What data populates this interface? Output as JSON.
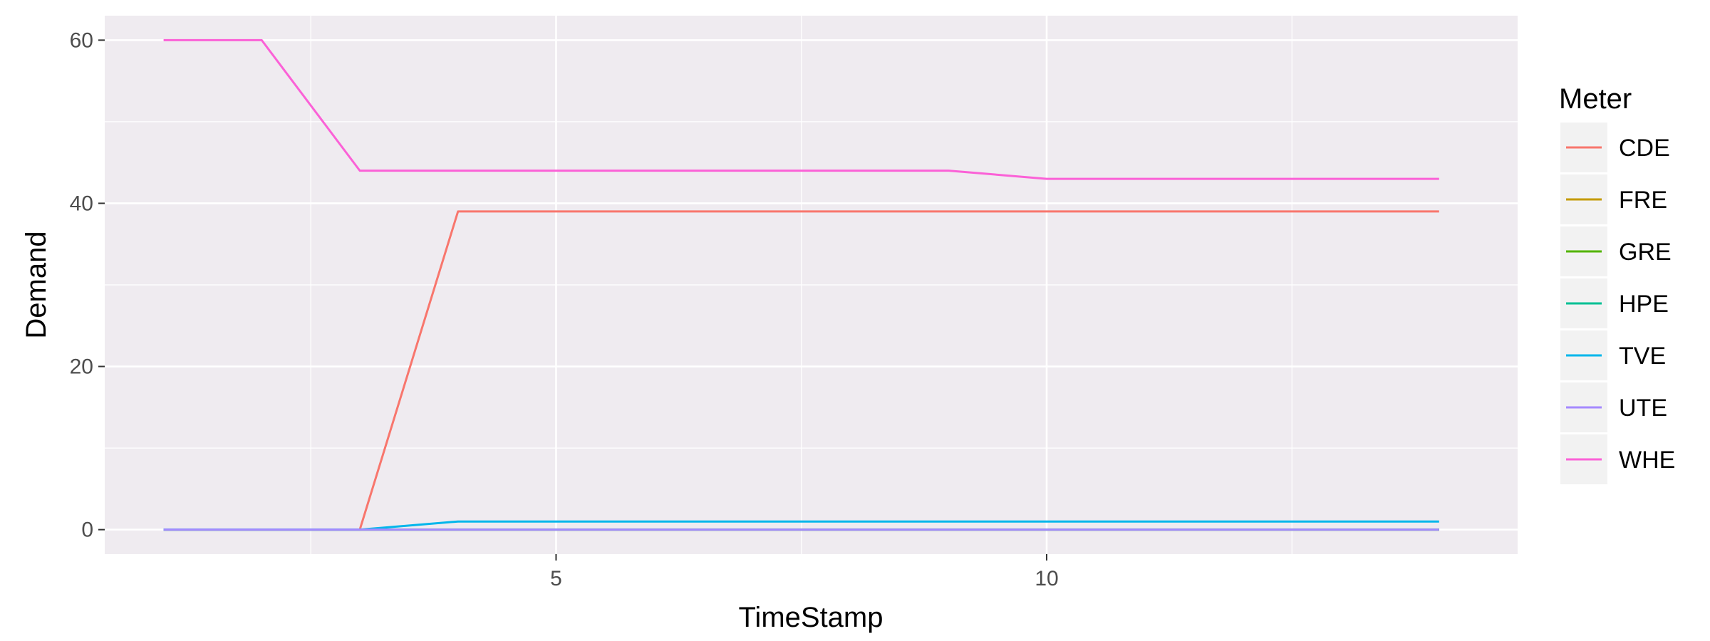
{
  "chart_data": {
    "type": "line",
    "xlabel": "TimeStamp",
    "ylabel": "Demand",
    "xlim": [
      0.4,
      14.8
    ],
    "ylim": [
      -3,
      63
    ],
    "x_ticks": [
      5,
      10
    ],
    "x_minor": [
      2.5,
      7.5,
      12.5
    ],
    "y_ticks": [
      0,
      20,
      40,
      60
    ],
    "y_minor": [
      10,
      30,
      50
    ],
    "grid": true,
    "legend_title": "Meter",
    "legend_position": "right",
    "x": [
      1,
      2,
      3,
      4,
      5,
      6,
      7,
      8,
      9,
      10,
      11,
      12,
      13,
      14
    ],
    "series": [
      {
        "name": "CDE",
        "color": "#F8766D",
        "values": [
          0,
          0,
          0,
          39,
          39,
          39,
          39,
          39,
          39,
          39,
          39,
          39,
          39,
          39
        ]
      },
      {
        "name": "FRE",
        "color": "#C49A00",
        "values": [
          0,
          0,
          0,
          0,
          0,
          0,
          0,
          0,
          0,
          0,
          0,
          0,
          0,
          0
        ]
      },
      {
        "name": "GRE",
        "color": "#53B400",
        "values": [
          0,
          0,
          0,
          0,
          0,
          0,
          0,
          0,
          0,
          0,
          0,
          0,
          0,
          0
        ]
      },
      {
        "name": "HPE",
        "color": "#00C094",
        "values": [
          0,
          0,
          0,
          0,
          0,
          0,
          0,
          0,
          0,
          0,
          0,
          0,
          0,
          0
        ]
      },
      {
        "name": "TVE",
        "color": "#00B6EB",
        "values": [
          0,
          0,
          0,
          1,
          1,
          1,
          1,
          1,
          1,
          1,
          1,
          1,
          1,
          1
        ]
      },
      {
        "name": "UTE",
        "color": "#A58AFF",
        "values": [
          0,
          0,
          0,
          0,
          0,
          0,
          0,
          0,
          0,
          0,
          0,
          0,
          0,
          0
        ]
      },
      {
        "name": "WHE",
        "color": "#FB61D7",
        "values": [
          60,
          60,
          44,
          44,
          44,
          44,
          44,
          44,
          44,
          43,
          43,
          43,
          43,
          43
        ]
      }
    ],
    "panel_color": "#EFEBF0",
    "grid_color": "#FFFFFF"
  }
}
